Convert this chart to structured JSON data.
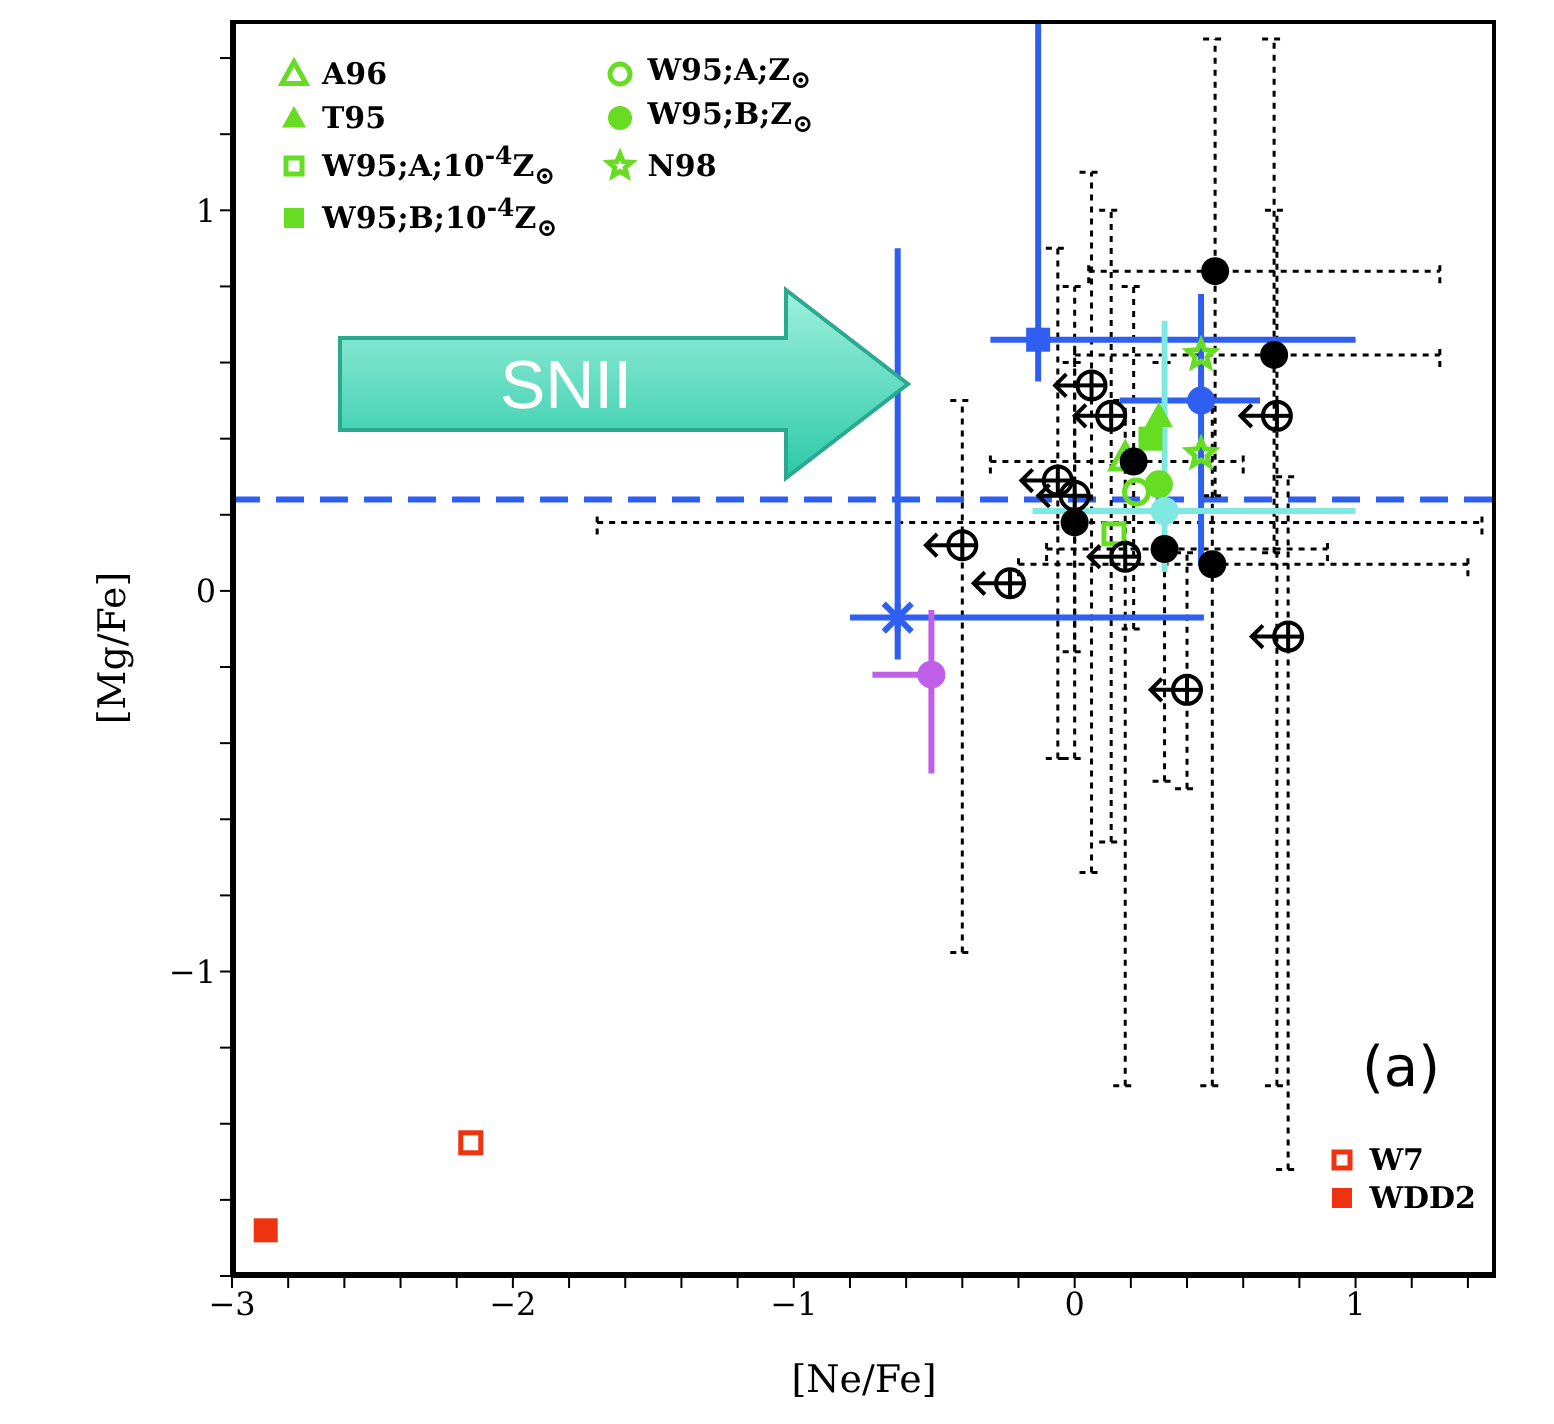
{
  "chart_data": {
    "type": "scatter",
    "xlabel": "[Ne/Fe]",
    "ylabel": "[Mg/Fe]",
    "xlim": [
      -3,
      1.5
    ],
    "ylim": [
      -1.8,
      1.5
    ],
    "xticks": [
      -3,
      {
        "value": -2.8,
        "label": null
      },
      {
        "value": -2.6,
        "label": null
      },
      {
        "value": -2.4,
        "label": null
      },
      {
        "value": -2.2,
        "label": null
      },
      -2,
      {
        "value": -1.8,
        "label": null
      },
      {
        "value": -1.6,
        "label": null
      },
      {
        "value": -1.4,
        "label": null
      },
      {
        "value": -1.2,
        "label": null
      },
      -1,
      {
        "value": -0.8,
        "label": null
      },
      {
        "value": -0.6,
        "label": null
      },
      {
        "value": -0.4,
        "label": null
      },
      {
        "value": -0.2,
        "label": null
      },
      0,
      {
        "value": 0.2,
        "label": null
      },
      {
        "value": 0.4,
        "label": null
      },
      {
        "value": 0.6,
        "label": null
      },
      {
        "value": 0.8,
        "label": null
      },
      1,
      {
        "value": 1.2,
        "label": null
      },
      {
        "value": 1.4,
        "label": null
      }
    ],
    "yticks": [
      {
        "value": -1.8,
        "label": null
      },
      {
        "value": -1.6,
        "label": null
      },
      {
        "value": -1.4,
        "label": null
      },
      {
        "value": -1.2,
        "label": null
      },
      -1,
      {
        "value": -0.8,
        "label": null
      },
      {
        "value": -0.6,
        "label": null
      },
      {
        "value": -0.4,
        "label": null
      },
      {
        "value": -0.2,
        "label": null
      },
      0,
      {
        "value": 0.2,
        "label": null
      },
      {
        "value": 0.4,
        "label": null
      },
      {
        "value": 0.6,
        "label": null
      },
      {
        "value": 0.8,
        "label": null
      },
      1,
      {
        "value": 1.2,
        "label": null
      },
      {
        "value": 1.4,
        "label": null
      }
    ],
    "grid": false,
    "legend": [
      "top left",
      "bottom right"
    ],
    "ref_lines": [
      {
        "axis": "y",
        "value": 0.24,
        "color": "#2f5ff0",
        "line_style": "dashed"
      }
    ],
    "annotations": [
      "SNII",
      "(a)"
    ],
    "series": [
      {
        "name": "A96",
        "color": "#66dd22",
        "marker": "triangle-open",
        "x": [
          0.18
        ],
        "values": [
          0.35
        ]
      },
      {
        "name": "T95",
        "color": "#66dd22",
        "marker": "triangle",
        "x": [
          0.3
        ],
        "values": [
          0.46
        ]
      },
      {
        "name": "W95;A;10$^{-4}$Z$_{⊙}$",
        "color": "#66dd22",
        "marker": "square-open",
        "x": [
          0.14
        ],
        "values": [
          0.15
        ]
      },
      {
        "name": "W95;B;10$^{-4}$Z$_{⊙}$",
        "color": "#66dd22",
        "marker": "square",
        "x": [
          0.27
        ],
        "values": [
          0.4
        ]
      },
      {
        "name": "W95;A;Z$_{⊙}$",
        "color": "#66dd22",
        "marker": "circle-open",
        "x": [
          0.22
        ],
        "values": [
          0.26
        ]
      },
      {
        "name": "W95;B;Z$_{⊙}$",
        "color": "#66dd22",
        "marker": "circle",
        "x": [
          0.3
        ],
        "values": [
          0.28
        ]
      },
      {
        "name": "N98",
        "color": "#66dd22",
        "marker": "star-open",
        "x": [
          0.45,
          0.45
        ],
        "values": [
          0.62,
          0.36
        ]
      },
      {
        "name": "W7",
        "color": "#ee3311",
        "marker": "square-open",
        "x": [
          -2.15
        ],
        "values": [
          -1.45
        ]
      },
      {
        "name": "WDD2",
        "color": "#ee3311",
        "marker": "square",
        "x": [
          -2.88
        ],
        "values": [
          -1.68
        ]
      },
      {
        "color": "#000000",
        "marker": "circle",
        "line_style": "dotted",
        "x": [
          0.5,
          0.71,
          0.49,
          0.32,
          0.0,
          0.21
        ],
        "values": [
          0.84,
          0.62,
          0.07,
          0.11,
          0.18,
          0.34
        ],
        "xerrors": [
          [
            0.05,
            1.3
          ],
          [
            0.0,
            1.3
          ],
          [
            -0.2,
            1.4
          ],
          [
            -0.1,
            0.9
          ],
          [
            -1.7,
            1.45
          ],
          [
            -0.3,
            0.6
          ]
        ],
        "errors": [
          [
            0.25,
            1.45
          ],
          [
            0.1,
            1.45
          ],
          [
            -1.3,
            0.5
          ],
          [
            -0.5,
            0.6
          ],
          [
            -0.44,
            0.6
          ],
          [
            -0.1,
            0.8
          ]
        ]
      },
      {
        "color": "#000000",
        "marker": "circle-plus",
        "line_style": "dotted",
        "x": [
          0.06,
          0.13,
          0.72,
          -0.06,
          0.0,
          -0.4,
          -0.23,
          0.18,
          0.76,
          0.4
        ],
        "values": [
          0.54,
          0.46,
          0.46,
          0.29,
          0.25,
          0.12,
          0.02,
          0.09,
          -0.12,
          -0.26
        ],
        "errors": [
          [
            -0.74,
            1.1
          ],
          [
            -0.66,
            1.0
          ],
          [
            -1.3,
            1.0
          ],
          [
            -0.44,
            0.9
          ],
          [
            -0.16,
            0.8
          ],
          [
            -0.95,
            0.5
          ],
          null,
          [
            -1.3,
            0.5
          ],
          [
            -1.52,
            0.3
          ],
          [
            -0.52,
            0.1
          ]
        ]
      },
      {
        "color": "#2f5ff0",
        "marker": "square",
        "x": [
          -0.13
        ],
        "values": [
          0.66
        ],
        "xerrors": [
          [
            -0.3,
            1.0
          ]
        ],
        "errors": [
          [
            0.55,
            1.5
          ]
        ]
      },
      {
        "color": "#2f5ff0",
        "marker": "circle",
        "x": [
          0.45
        ],
        "values": [
          0.5
        ],
        "xerrors": [
          [
            0.16,
            0.66
          ]
        ],
        "errors": [
          [
            0.07,
            0.78
          ]
        ]
      },
      {
        "color": "#2f5ff0",
        "marker": "cross",
        "x": [
          -0.63
        ],
        "values": [
          -0.07
        ],
        "xerrors": [
          [
            -0.8,
            0.46
          ]
        ],
        "errors": [
          [
            -0.18,
            0.9
          ]
        ]
      },
      {
        "color": "#7fe8e0",
        "marker": "circle",
        "x": [
          0.32
        ],
        "values": [
          0.21
        ],
        "xerrors": [
          [
            -0.15,
            1.0
          ]
        ],
        "errors": [
          [
            0.05,
            0.71
          ]
        ]
      },
      {
        "color": "#c060e8",
        "marker": "circle",
        "x": [
          -0.51
        ],
        "values": [
          -0.22
        ],
        "xerrors": [
          [
            -0.72,
            -0.51
          ]
        ],
        "errors": [
          [
            -0.48,
            -0.05
          ]
        ]
      }
    ]
  }
}
